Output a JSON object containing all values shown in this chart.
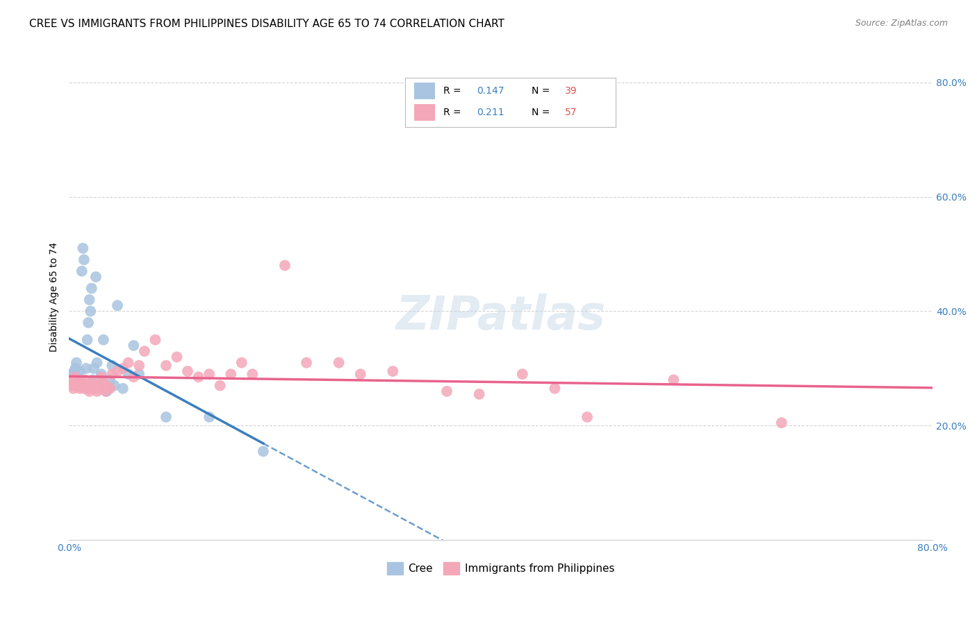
{
  "title": "CREE VS IMMIGRANTS FROM PHILIPPINES DISABILITY AGE 65 TO 74 CORRELATION CHART",
  "source": "Source: ZipAtlas.com",
  "ylabel": "Disability Age 65 to 74",
  "xlim": [
    0.0,
    0.8
  ],
  "ylim": [
    0.0,
    0.85
  ],
  "xticks": [
    0.0,
    0.1,
    0.2,
    0.3,
    0.4,
    0.5,
    0.6,
    0.7,
    0.8
  ],
  "xticklabels": [
    "0.0%",
    "",
    "",
    "",
    "",
    "",
    "",
    "",
    "80.0%"
  ],
  "yticks": [
    0.2,
    0.4,
    0.6,
    0.8
  ],
  "yticklabels": [
    "20.0%",
    "40.0%",
    "60.0%",
    "80.0%"
  ],
  "color_cree": "#a8c4e0",
  "color_philippines": "#f4a7b9",
  "color_line1": "#3a7ebf",
  "color_line2": "#e8638c",
  "tick_color": "#3a7ebf",
  "legend_R_color": "#3a7ebf",
  "legend_N_color": "#e05050",
  "background_color": "#ffffff",
  "grid_color": "#d0d0d0",
  "cree_scatter_x": [
    0.002,
    0.003,
    0.004,
    0.005,
    0.006,
    0.007,
    0.008,
    0.009,
    0.01,
    0.01,
    0.012,
    0.013,
    0.014,
    0.015,
    0.016,
    0.017,
    0.018,
    0.019,
    0.02,
    0.021,
    0.022,
    0.023,
    0.025,
    0.026,
    0.028,
    0.03,
    0.032,
    0.035,
    0.038,
    0.04,
    0.042,
    0.045,
    0.05,
    0.055,
    0.06,
    0.065,
    0.09,
    0.13,
    0.18
  ],
  "cree_scatter_y": [
    0.29,
    0.275,
    0.285,
    0.295,
    0.3,
    0.31,
    0.285,
    0.275,
    0.28,
    0.295,
    0.47,
    0.51,
    0.49,
    0.27,
    0.3,
    0.35,
    0.38,
    0.42,
    0.4,
    0.44,
    0.28,
    0.3,
    0.46,
    0.31,
    0.27,
    0.29,
    0.35,
    0.26,
    0.28,
    0.305,
    0.27,
    0.41,
    0.265,
    0.29,
    0.34,
    0.29,
    0.215,
    0.215,
    0.155
  ],
  "phil_scatter_x": [
    0.002,
    0.003,
    0.004,
    0.005,
    0.006,
    0.007,
    0.008,
    0.009,
    0.01,
    0.012,
    0.013,
    0.014,
    0.015,
    0.016,
    0.018,
    0.019,
    0.02,
    0.021,
    0.022,
    0.024,
    0.025,
    0.026,
    0.028,
    0.03,
    0.032,
    0.034,
    0.036,
    0.038,
    0.04,
    0.045,
    0.05,
    0.055,
    0.06,
    0.065,
    0.07,
    0.08,
    0.09,
    0.1,
    0.11,
    0.12,
    0.13,
    0.14,
    0.15,
    0.16,
    0.17,
    0.2,
    0.22,
    0.25,
    0.27,
    0.3,
    0.35,
    0.38,
    0.42,
    0.45,
    0.48,
    0.56,
    0.66
  ],
  "phil_scatter_y": [
    0.275,
    0.27,
    0.265,
    0.28,
    0.285,
    0.275,
    0.268,
    0.272,
    0.265,
    0.275,
    0.27,
    0.265,
    0.28,
    0.27,
    0.265,
    0.26,
    0.27,
    0.275,
    0.268,
    0.265,
    0.27,
    0.26,
    0.265,
    0.285,
    0.275,
    0.26,
    0.268,
    0.265,
    0.29,
    0.295,
    0.3,
    0.31,
    0.285,
    0.305,
    0.33,
    0.35,
    0.305,
    0.32,
    0.295,
    0.285,
    0.29,
    0.27,
    0.29,
    0.31,
    0.29,
    0.48,
    0.31,
    0.31,
    0.29,
    0.295,
    0.26,
    0.255,
    0.29,
    0.265,
    0.215,
    0.28,
    0.205
  ],
  "title_fontsize": 11,
  "axis_label_fontsize": 10,
  "tick_fontsize": 10
}
